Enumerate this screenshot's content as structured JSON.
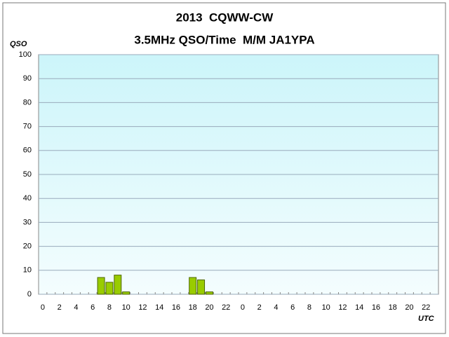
{
  "chart_data": {
    "type": "bar",
    "title": "2013  CQWW-CW",
    "subtitle": "3.5MHz QSO/Time  M/M JA1YPA",
    "y_label": "QSO",
    "x_label": "UTC",
    "categories": [
      "0",
      null,
      "2",
      null,
      "4",
      null,
      "6",
      null,
      "8",
      null,
      "10",
      null,
      "12",
      null,
      "14",
      null,
      "16",
      null,
      "18",
      null,
      "20",
      null,
      "22",
      null,
      "0",
      null,
      "2",
      null,
      "4",
      null,
      "6",
      null,
      "8",
      null,
      "10",
      null,
      "12",
      null,
      "14",
      null,
      "16",
      null,
      "18",
      null,
      "20",
      null,
      "22",
      null
    ],
    "values": [
      0,
      0,
      0,
      0,
      0,
      0,
      0,
      7,
      5,
      8,
      1,
      0,
      0,
      0,
      0,
      0,
      0,
      0,
      7,
      6,
      1,
      0,
      0,
      0,
      0,
      0,
      0,
      0,
      0,
      0,
      0,
      0,
      0,
      0,
      0,
      0,
      0,
      0,
      0,
      0,
      0,
      0,
      0,
      0,
      0,
      0,
      0,
      0
    ],
    "color": "#99cc00",
    "ylim": [
      0,
      100
    ],
    "yticks": [
      0,
      10,
      20,
      30,
      40,
      50,
      60,
      70,
      80,
      90,
      100
    ],
    "grid": true
  }
}
